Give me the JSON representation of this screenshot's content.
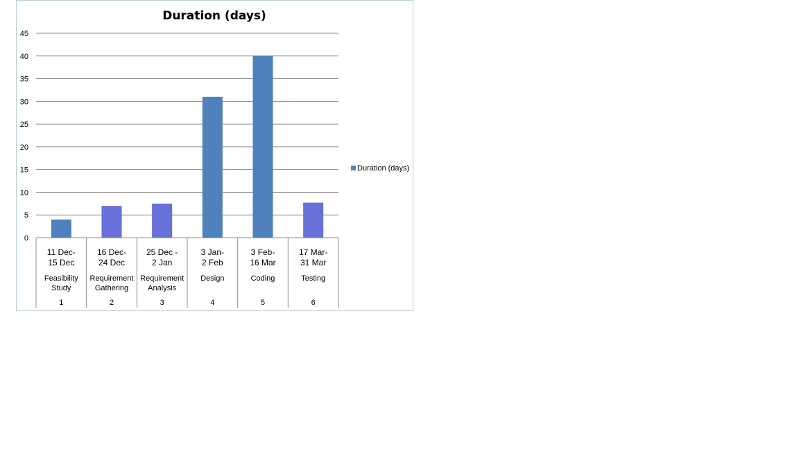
{
  "chart_data": {
    "type": "bar",
    "title": "Duration (days)",
    "xlabel": "",
    "ylabel": "",
    "ylim": [
      0,
      45
    ],
    "yticks": [
      0,
      5,
      10,
      15,
      20,
      25,
      30,
      35,
      40,
      45
    ],
    "grid": true,
    "legend_position": "right",
    "categories": [
      {
        "dates": [
          "11 Dec-",
          "15 Dec"
        ],
        "name": [
          "Feasibility",
          "Study"
        ],
        "number": "1"
      },
      {
        "dates": [
          "16 Dec-",
          "24 Dec"
        ],
        "name": [
          "Requirement",
          "Gathering"
        ],
        "number": "2"
      },
      {
        "dates": [
          "25 Dec -",
          "2 Jan"
        ],
        "name": [
          "Requirement",
          "Analysis"
        ],
        "number": "3"
      },
      {
        "dates": [
          "3 Jan-",
          "2 Feb"
        ],
        "name": [
          "Design"
        ],
        "number": "4"
      },
      {
        "dates": [
          "3 Feb-",
          "16 Mar"
        ],
        "name": [
          "Coding"
        ],
        "number": "5"
      },
      {
        "dates": [
          "17 Mar-",
          "31 Mar"
        ],
        "name": [
          "Testing"
        ],
        "number": "6"
      }
    ],
    "series": [
      {
        "name": "Duration (days)",
        "values": [
          4,
          7,
          7.5,
          31,
          40,
          7.7
        ],
        "colors": [
          "#4f81bd",
          "#6870d9",
          "#6870d9",
          "#4f81bd",
          "#4f81bd",
          "#6870d9"
        ]
      }
    ]
  },
  "colors": {
    "primary_bar": "#4f81bd",
    "highlight_bar": "#6870d9",
    "grid": "#8c8c8c",
    "frame_border": "#b9cfcc"
  }
}
